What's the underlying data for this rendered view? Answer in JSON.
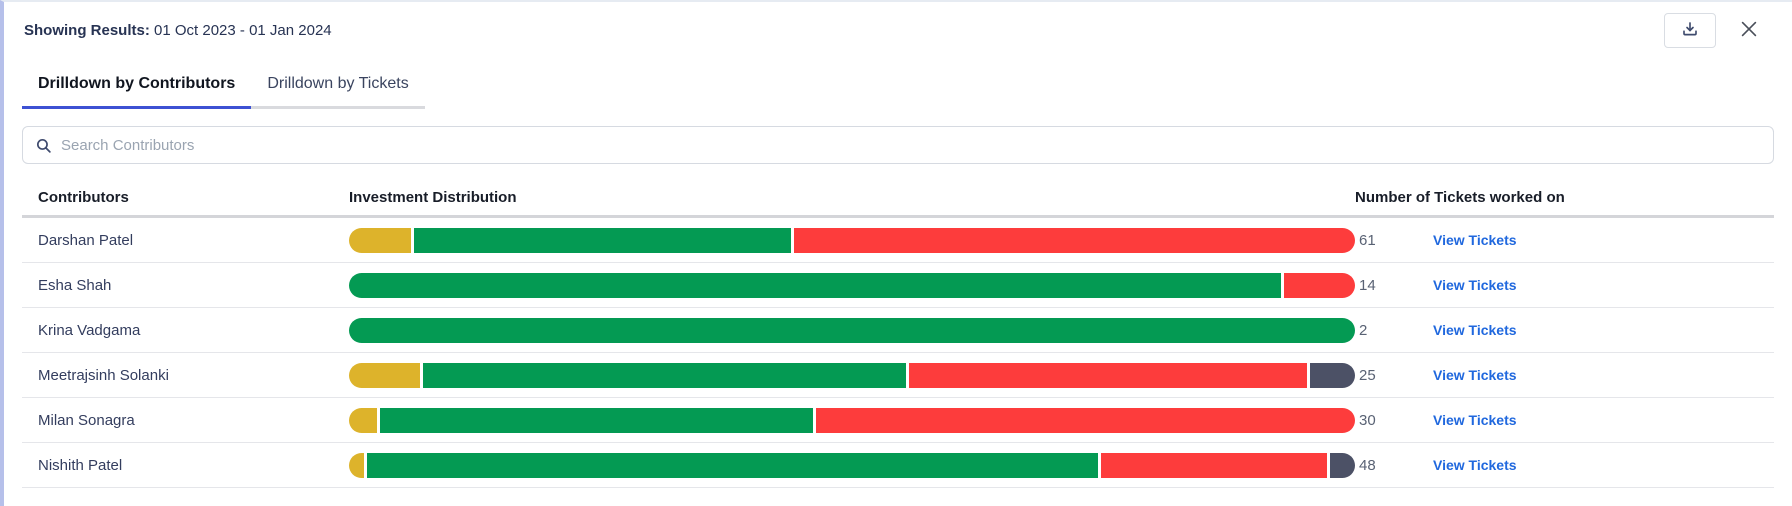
{
  "header": {
    "label": "Showing Results:",
    "value": "01 Oct 2023 - 01 Jan 2024"
  },
  "toolbar": {
    "download_icon": "download-tray-icon",
    "close_icon": "close-x-icon"
  },
  "tabs": [
    {
      "label": "Drilldown by Contributors",
      "active": true
    },
    {
      "label": "Drilldown by Tickets",
      "active": false
    }
  ],
  "search": {
    "icon": "magnifier-icon",
    "placeholder": "Search Contributors"
  },
  "colors": {
    "yellow": "#DDB32B",
    "green": "#049A53",
    "red": "#FD3C3C",
    "slate": "#4C5166",
    "accent_tab": "#3D51D3",
    "link_blue": "#2068DE",
    "left_edge": "#B6C0EA"
  },
  "table": {
    "columns": [
      "Contributors",
      "Investment Distribution",
      "Number of Tickets worked on"
    ],
    "rows": [
      {
        "name": "Darshan Patel",
        "tickets": "61",
        "link": "View Tickets",
        "segments": [
          {
            "color": "yellow",
            "weight": 62
          },
          {
            "color": "green",
            "weight": 375
          },
          {
            "color": "red",
            "weight": 559
          }
        ]
      },
      {
        "name": "Esha Shah",
        "tickets": "14",
        "link": "View Tickets",
        "segments": [
          {
            "color": "green",
            "weight": 925
          },
          {
            "color": "red",
            "weight": 71
          }
        ]
      },
      {
        "name": "Krina Vadgama",
        "tickets": "2",
        "link": "View Tickets",
        "segments": [
          {
            "color": "green",
            "weight": 1006
          }
        ]
      },
      {
        "name": "Meetrajsinh Solanki",
        "tickets": "25",
        "link": "View Tickets",
        "segments": [
          {
            "color": "yellow",
            "weight": 71
          },
          {
            "color": "green",
            "weight": 481
          },
          {
            "color": "red",
            "weight": 397
          },
          {
            "color": "slate",
            "weight": 45
          }
        ]
      },
      {
        "name": "Milan Sonagra",
        "tickets": "30",
        "link": "View Tickets",
        "segments": [
          {
            "color": "yellow",
            "weight": 28
          },
          {
            "color": "green",
            "weight": 430
          },
          {
            "color": "red",
            "weight": 536
          }
        ]
      },
      {
        "name": "Nishith Patel",
        "tickets": "48",
        "link": "View Tickets",
        "segments": [
          {
            "color": "yellow",
            "weight": 15
          },
          {
            "color": "green",
            "weight": 730
          },
          {
            "color": "red",
            "weight": 226
          },
          {
            "color": "slate",
            "weight": 25
          }
        ]
      }
    ]
  }
}
